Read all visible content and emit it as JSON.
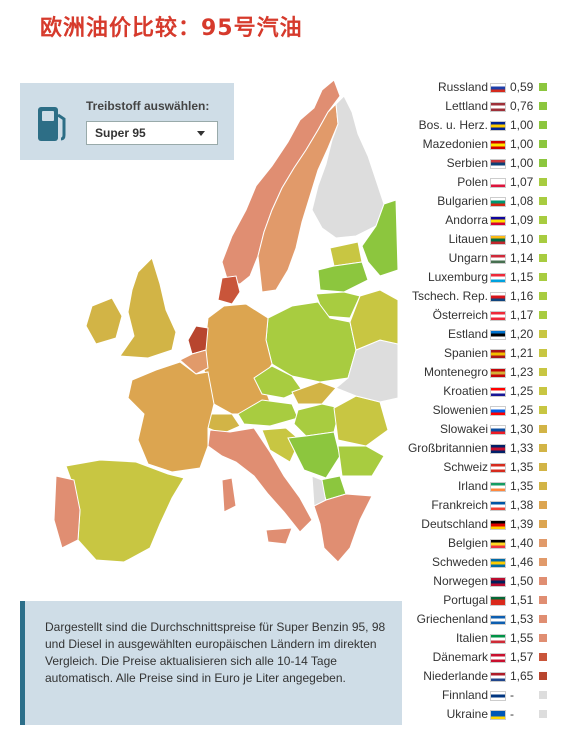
{
  "title": "欧洲油价比较：95号汽油",
  "fuel_selector": {
    "label": "Treibstoff auswählen:",
    "selected": "Super 95",
    "icon": "fuel-pump-icon"
  },
  "info_text": "Dargestellt sind die Durchschnittspreise für Super Benzin 95, 98 und Diesel in ausgewählten europäischen Ländern im direkten Vergleich. Die Preise aktualisieren sich alle 10-14 Tage automatisch. Alle Preise sind in Euro je Liter angegeben.",
  "price_colors": {
    "cheap": "#9acd32",
    "mid_low": "#b8cc3e",
    "mid": "#d4a93f",
    "mid_high": "#e39a6c",
    "high": "#c0452c",
    "none": "#dddddd"
  },
  "legend": [
    {
      "country": "Russland",
      "price": "0,59",
      "color": "#8cc63e"
    },
    {
      "country": "Lettland",
      "price": "0,76",
      "color": "#8cc63e"
    },
    {
      "country": "Bos. u. Herz.",
      "price": "1,00",
      "color": "#8cc63e"
    },
    {
      "country": "Mazedonien",
      "price": "1,00",
      "color": "#8cc63e"
    },
    {
      "country": "Serbien",
      "price": "1,00",
      "color": "#8cc63e"
    },
    {
      "country": "Polen",
      "price": "1,07",
      "color": "#a8cc40"
    },
    {
      "country": "Bulgarien",
      "price": "1,08",
      "color": "#a8cc40"
    },
    {
      "country": "Andorra",
      "price": "1,09",
      "color": "#a8cc40"
    },
    {
      "country": "Litauen",
      "price": "1,10",
      "color": "#a8cc40"
    },
    {
      "country": "Ungarn",
      "price": "1,14",
      "color": "#a8cc40"
    },
    {
      "country": "Luxemburg",
      "price": "1,15",
      "color": "#a8cc40"
    },
    {
      "country": "Tschech. Rep.",
      "price": "1,16",
      "color": "#a8cc40"
    },
    {
      "country": "Österreich",
      "price": "1,17",
      "color": "#a8cc40"
    },
    {
      "country": "Estland",
      "price": "1,20",
      "color": "#c8c642"
    },
    {
      "country": "Spanien",
      "price": "1,21",
      "color": "#c8c642"
    },
    {
      "country": "Montenegro",
      "price": "1,23",
      "color": "#c8c642"
    },
    {
      "country": "Kroatien",
      "price": "1,25",
      "color": "#c8c642"
    },
    {
      "country": "Slowenien",
      "price": "1,25",
      "color": "#c8c642"
    },
    {
      "country": "Slowakei",
      "price": "1,30",
      "color": "#d2b446"
    },
    {
      "country": "Großbritannien",
      "price": "1,33",
      "color": "#d2b446"
    },
    {
      "country": "Schweiz",
      "price": "1,35",
      "color": "#d2b446"
    },
    {
      "country": "Irland",
      "price": "1,35",
      "color": "#d2b446"
    },
    {
      "country": "Frankreich",
      "price": "1,38",
      "color": "#dca550"
    },
    {
      "country": "Deutschland",
      "price": "1,39",
      "color": "#dca550"
    },
    {
      "country": "Belgien",
      "price": "1,40",
      "color": "#e19a6a"
    },
    {
      "country": "Schweden",
      "price": "1,46",
      "color": "#e19a6a"
    },
    {
      "country": "Norwegen",
      "price": "1,50",
      "color": "#e08e72"
    },
    {
      "country": "Portugal",
      "price": "1,51",
      "color": "#e08e72"
    },
    {
      "country": "Griechenland",
      "price": "1,53",
      "color": "#e08e72"
    },
    {
      "country": "Italien",
      "price": "1,55",
      "color": "#e08e72"
    },
    {
      "country": "Dänemark",
      "price": "1,57",
      "color": "#c9553a"
    },
    {
      "country": "Niederlande",
      "price": "1,65",
      "color": "#b8452e"
    },
    {
      "country": "Finnland",
      "price": "-",
      "color": "#dddddd"
    },
    {
      "country": "Ukraine",
      "price": "-",
      "color": "#dddddd"
    }
  ]
}
